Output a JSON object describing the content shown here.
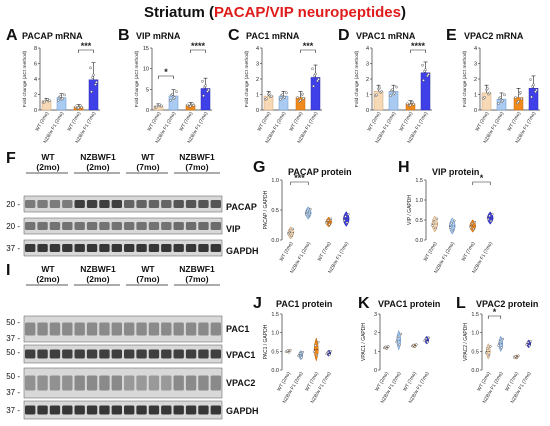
{
  "figure": {
    "title_main": "Striatum",
    "title_paren_open": " (",
    "title_highlight": "PACAP/VIP neuropeptides",
    "title_paren_close": ")",
    "highlight_color": "#e01b1b"
  },
  "colors": {
    "wt_2mo": "#f7d9b5",
    "nzbwf1_2mo": "#a9cbf2",
    "wt_7mo": "#f08a1c",
    "nzbwf1_7mo": "#4040e8"
  },
  "panels_mrna": [
    {
      "letter": "A",
      "title": "PACAP mRNA",
      "ylabel": "Fold change (ΔCt method)",
      "yticks": [
        "0",
        "2",
        "4",
        "6",
        "8"
      ],
      "ymax": 8,
      "values": [
        1.2,
        1.6,
        0.4,
        3.9
      ],
      "errors": [
        0.3,
        0.5,
        0.3,
        2.2
      ],
      "sig": "***",
      "sig_pair": [
        2,
        3
      ],
      "extra_sig": ""
    },
    {
      "letter": "B",
      "title": "VIP mRNA",
      "ylabel": "Fold change (ΔCt method)",
      "yticks": [
        "0",
        "5",
        "10",
        "15"
      ],
      "ymax": 15,
      "values": [
        1.0,
        3.4,
        1.2,
        5.2
      ],
      "errors": [
        0.5,
        1.5,
        0.6,
        2.5
      ],
      "sig": "****",
      "sig_pair": [
        2,
        3
      ],
      "extra_sig": "*",
      "extra_pair": [
        0,
        1
      ]
    },
    {
      "letter": "C",
      "title": "PAC1 mRNA",
      "ylabel": "Fold change (ΔCt method)",
      "yticks": [
        "0",
        "1",
        "2",
        "3",
        "4"
      ],
      "ymax": 4,
      "values": [
        0.9,
        0.9,
        0.8,
        2.1
      ],
      "errors": [
        0.3,
        0.3,
        0.4,
        0.8
      ],
      "sig": "***",
      "sig_pair": [
        2,
        3
      ],
      "extra_sig": ""
    },
    {
      "letter": "D",
      "title": "VPAC1 mRNA",
      "ylabel": "Fold change (ΔCt method)",
      "yticks": [
        "0",
        "1",
        "2",
        "3",
        "4"
      ],
      "ymax": 4,
      "values": [
        1.2,
        1.2,
        0.4,
        2.4
      ],
      "errors": [
        0.4,
        0.4,
        0.2,
        0.7
      ],
      "sig": "****",
      "sig_pair": [
        2,
        3
      ],
      "extra_sig": ""
    },
    {
      "letter": "E",
      "title": "VPAC2 mRNA",
      "ylabel": "Fold change (ΔCt method)",
      "yticks": [
        "0",
        "1",
        "2",
        "3",
        "4"
      ],
      "ymax": 4,
      "values": [
        1.1,
        0.7,
        0.8,
        1.4
      ],
      "errors": [
        0.5,
        0.4,
        0.6,
        0.8
      ],
      "sig": "",
      "sig_pair": [
        2,
        3
      ],
      "extra_sig": ""
    }
  ],
  "group_labels": [
    "WT (2mo)",
    "NZB/w F1 (2mo)",
    "WT (7mo)",
    "NZB/w F1 (7mo)"
  ],
  "panels_protein": [
    {
      "letter": "G",
      "title": "PACAP protein",
      "ylabel": "PACAP / GAPDH",
      "yticks": [
        "0.0",
        "0.5",
        "1.0"
      ],
      "ymax": 1.0,
      "medians": [
        0.12,
        0.45,
        0.3,
        0.35
      ],
      "spreads": [
        0.1,
        0.1,
        0.08,
        0.12
      ],
      "sig": "***",
      "sig_pair": [
        0,
        1
      ]
    },
    {
      "letter": "H",
      "title": "VIP protein",
      "ylabel": "VIP / GAPDH",
      "yticks": [
        "0.0",
        "0.5",
        "1.0",
        "1.5"
      ],
      "ymax": 1.5,
      "medians": [
        0.4,
        0.35,
        0.35,
        0.55
      ],
      "spreads": [
        0.2,
        0.2,
        0.15,
        0.15
      ],
      "sig": "*",
      "sig_pair": [
        2,
        3
      ]
    },
    {
      "letter": "J",
      "title": "PAC1 protein",
      "ylabel": "PAC1 / GAPDH",
      "yticks": [
        "0.0",
        "0.5",
        "1.0",
        "1.5"
      ],
      "ymax": 1.5,
      "medians": [
        0.5,
        0.4,
        0.55,
        0.45
      ],
      "spreads": [
        0.05,
        0.12,
        0.3,
        0.08
      ],
      "sig": "",
      "sig_pair": [
        0,
        1
      ]
    },
    {
      "letter": "K",
      "title": "VPAC1 protein",
      "ylabel": "VPAC1 / GAPDH",
      "yticks": [
        "0",
        "1",
        "2",
        "3"
      ],
      "ymax": 3,
      "medians": [
        1.2,
        1.6,
        1.3,
        1.6
      ],
      "spreads": [
        0.1,
        0.5,
        0.1,
        0.2
      ],
      "sig": "",
      "sig_pair": [
        0,
        1
      ]
    },
    {
      "letter": "L",
      "title": "VPAC2 protein",
      "ylabel": "VPAC2 / GAPDH",
      "yticks": [
        "0.0",
        "0.5",
        "1.0",
        "1.5"
      ],
      "ymax": 1.5,
      "medians": [
        0.5,
        0.7,
        0.35,
        0.7
      ],
      "spreads": [
        0.2,
        0.2,
        0.05,
        0.1
      ],
      "sig": "*",
      "sig_pair": [
        0,
        1
      ]
    }
  ],
  "blot_F": {
    "letter": "F",
    "groups": [
      {
        "line1": "WT",
        "line2": "(2mo)"
      },
      {
        "line1": "NZBWF1",
        "line2": "(2mo)"
      },
      {
        "line1": "WT",
        "line2": "(7mo)"
      },
      {
        "line1": "NZBWF1",
        "line2": "(7mo)"
      }
    ],
    "rows": [
      {
        "mw": "20 -",
        "label": "PACAP"
      },
      {
        "mw": "20 -",
        "label": "VIP"
      },
      {
        "mw": "37 -",
        "label": "GAPDH"
      }
    ]
  },
  "blot_I": {
    "letter": "I",
    "groups": [
      {
        "line1": "WT",
        "line2": "(2mo)"
      },
      {
        "line1": "NZBWF1",
        "line2": "(2mo)"
      },
      {
        "line1": "WT",
        "line2": "(7mo)"
      },
      {
        "line1": "NZBWF1",
        "line2": "(7mo)"
      }
    ],
    "rows": [
      {
        "mw": "50 -",
        "mw2": "37 -",
        "label": "PAC1"
      },
      {
        "mw": "50 -",
        "mw2": "",
        "label": "VPAC1"
      },
      {
        "mw": "50 -",
        "mw2": "37 -",
        "label": "VPAC2"
      },
      {
        "mw": "37 -",
        "mw2": "",
        "label": "GAPDH"
      }
    ]
  }
}
